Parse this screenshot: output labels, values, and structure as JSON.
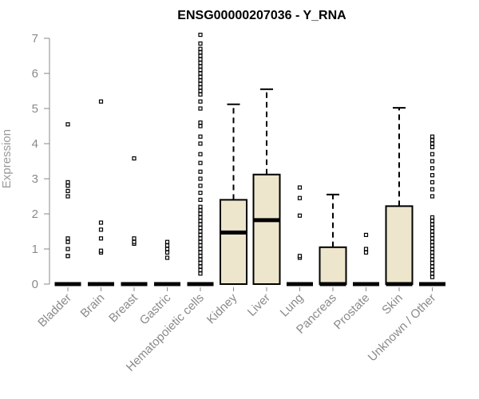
{
  "chart_data": {
    "type": "boxplot",
    "title": "ENSG00000207036 - Y_RNA",
    "xlabel": "",
    "ylabel": "Expression",
    "ylim": [
      0,
      7
    ],
    "yticks": [
      0,
      1,
      2,
      3,
      4,
      5,
      6,
      7
    ],
    "box_fill": "#ede6cc",
    "categories": [
      "Bladder",
      "Brain",
      "Breast",
      "Gastric",
      "Hematopoietic cells",
      "Kidney",
      "Liver",
      "Lung",
      "Pancreas",
      "Prostate",
      "Skin",
      "Unknown / Other"
    ],
    "boxes": [
      {
        "min": 0,
        "q1": 0,
        "median": 0,
        "q3": 0,
        "max": 0,
        "outliers": [
          0.8,
          0.8,
          1.0,
          1.2,
          1.3,
          2.5,
          2.65,
          2.8,
          2.9,
          4.55
        ]
      },
      {
        "min": 0,
        "q1": 0,
        "median": 0,
        "q3": 0,
        "max": 0,
        "outliers": [
          0.9,
          0.95,
          1.3,
          1.55,
          1.75,
          5.2
        ]
      },
      {
        "min": 0,
        "q1": 0,
        "median": 0,
        "q3": 0,
        "max": 0,
        "outliers": [
          1.15,
          1.2,
          1.3,
          3.58
        ]
      },
      {
        "min": 0,
        "q1": 0,
        "median": 0,
        "q3": 0,
        "max": 0,
        "outliers": [
          0.75,
          0.9,
          1.0,
          1.1,
          1.2
        ]
      },
      {
        "min": 0,
        "q1": 0,
        "median": 0,
        "q3": 0,
        "max": 0,
        "outliers": [
          0.3,
          0.4,
          0.5,
          0.6,
          0.7,
          0.8,
          0.9,
          1.0,
          1.1,
          1.2,
          1.3,
          1.4,
          1.5,
          1.6,
          1.7,
          1.8,
          1.9,
          2.0,
          2.1,
          2.2,
          2.4,
          2.6,
          2.8,
          3.0,
          3.2,
          3.45,
          3.7,
          4.0,
          4.2,
          4.5,
          4.6,
          5.0,
          5.2,
          5.4,
          5.5,
          5.6,
          5.7,
          5.8,
          5.9,
          6.0,
          6.1,
          6.2,
          6.3,
          6.4,
          6.5,
          6.6,
          6.7,
          6.85,
          7.1
        ]
      },
      {
        "min": 0,
        "q1": 0,
        "median": 1.47,
        "q3": 2.4,
        "max": 5.12,
        "outliers": []
      },
      {
        "min": 0,
        "q1": 0,
        "median": 1.82,
        "q3": 3.12,
        "max": 5.55,
        "outliers": []
      },
      {
        "min": 0,
        "q1": 0,
        "median": 0,
        "q3": 0,
        "max": 0,
        "outliers": [
          0.75,
          0.8,
          1.95,
          2.45,
          2.75
        ]
      },
      {
        "min": 0,
        "q1": 0,
        "median": 0,
        "q3": 1.05,
        "max": 2.55,
        "outliers": []
      },
      {
        "min": 0,
        "q1": 0,
        "median": 0,
        "q3": 0,
        "max": 0,
        "outliers": [
          0.9,
          1.0,
          1.4
        ]
      },
      {
        "min": 0,
        "q1": 0,
        "median": 0,
        "q3": 2.22,
        "max": 5.02,
        "outliers": []
      },
      {
        "min": 0,
        "q1": 0,
        "median": 0,
        "q3": 0,
        "max": 0,
        "outliers": [
          0.2,
          0.3,
          0.4,
          0.5,
          0.6,
          0.7,
          0.8,
          0.9,
          1.0,
          1.1,
          1.2,
          1.3,
          1.4,
          1.5,
          1.6,
          1.7,
          1.8,
          1.9,
          2.5,
          2.7,
          2.9,
          3.1,
          3.3,
          3.5,
          3.7,
          3.9,
          4.0,
          4.1,
          4.2
        ]
      }
    ]
  }
}
